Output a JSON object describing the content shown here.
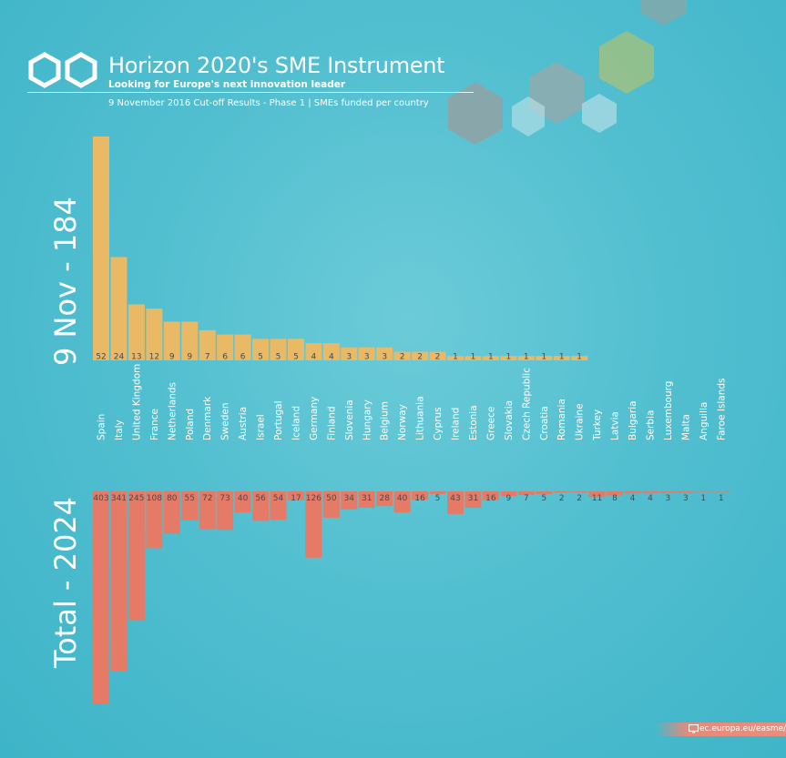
{
  "header": {
    "title": "Horizon 2020's SME Instrument",
    "tagline": "Looking for Europe's next innovation leader",
    "subtitle": "9 November 2016 Cut-off Results - Phase 1 | SMEs funded per country"
  },
  "footer": {
    "url": "ec.europa.eu/easme/"
  },
  "colors": {
    "top_bars": "#e9b966",
    "bottom_bars": "#e57b66",
    "text": "#ffffff",
    "value_text": "#4a4a4a"
  },
  "icons": [
    "hexagon-logo-icon",
    "monitor-icon"
  ],
  "chart_data": [
    {
      "type": "bar",
      "title": "9 Nov - 184",
      "orientation": "vertical-up",
      "categories": [
        "Spain",
        "Italy",
        "United Kingdom",
        "France",
        "Netherlands",
        "Poland",
        "Denmark",
        "Sweden",
        "Austria",
        "Israel",
        "Portugal",
        "Iceland",
        "Germany",
        "Finland",
        "Slovenia",
        "Hungary",
        "Belgium",
        "Norway",
        "Lithuania",
        "Cyprus",
        "Ireland",
        "Estonia",
        "Greece",
        "Slovakia",
        "Czech Republic",
        "Croatia",
        "Romania",
        "Ukraine",
        "Turkey",
        "Latvia",
        "Bulgaria",
        "Serbia",
        "Luxembourg",
        "Malta",
        "Anguilla",
        "Faroe Islands"
      ],
      "values": [
        52,
        24,
        13,
        12,
        9,
        9,
        7,
        6,
        6,
        5,
        5,
        5,
        4,
        4,
        3,
        3,
        3,
        2,
        2,
        2,
        1,
        1,
        1,
        1,
        1,
        1,
        1,
        1,
        null,
        null,
        null,
        null,
        null,
        null,
        null,
        null
      ],
      "color": "#e9b966"
    },
    {
      "type": "bar",
      "title": "Total - 2024",
      "orientation": "vertical-down",
      "categories": [
        "Spain",
        "Italy",
        "United Kingdom",
        "France",
        "Netherlands",
        "Poland",
        "Denmark",
        "Sweden",
        "Austria",
        "Israel",
        "Portugal",
        "Iceland",
        "Germany",
        "Finland",
        "Slovenia",
        "Hungary",
        "Belgium",
        "Norway",
        "Lithuania",
        "Cyprus",
        "Ireland",
        "Estonia",
        "Greece",
        "Slovakia",
        "Czech Republic",
        "Croatia",
        "Romania",
        "Ukraine",
        "Turkey",
        "Latvia",
        "Bulgaria",
        "Serbia",
        "Luxembourg",
        "Malta",
        "Anguilla",
        "Faroe Islands"
      ],
      "values": [
        403,
        341,
        245,
        108,
        80,
        55,
        72,
        73,
        40,
        56,
        54,
        17,
        126,
        50,
        34,
        31,
        28,
        40,
        16,
        5,
        43,
        31,
        16,
        9,
        7,
        5,
        2,
        2,
        11,
        8,
        4,
        4,
        3,
        3,
        1,
        1
      ],
      "color": "#e57b66"
    }
  ]
}
